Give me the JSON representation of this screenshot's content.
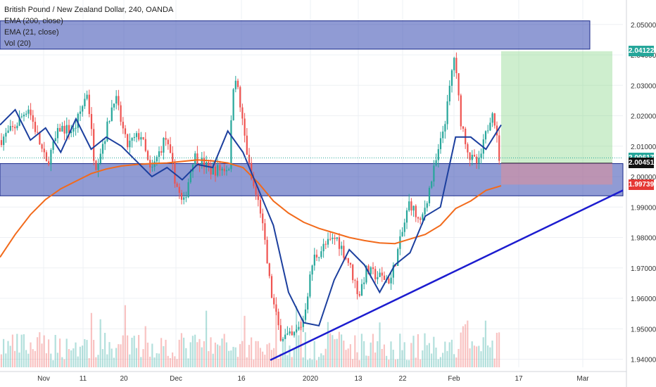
{
  "legend": {
    "symbol": "British Pound / New Zealand Dollar, 240, OANDA",
    "ema200": "EMA (200, close)",
    "ema21": "EMA (21, close)",
    "vol": "Vol (20)"
  },
  "price_tags": [
    {
      "label": "2.04122",
      "color": "#26a69a",
      "value": 2.04122
    },
    {
      "label": "2.00617",
      "color": "#26a69a",
      "value": 2.00617
    },
    {
      "label": "2.00451",
      "color": "#111111",
      "value": 2.00451
    },
    {
      "label": "1.99739",
      "color": "#e53935",
      "value": 1.99739
    }
  ],
  "colors": {
    "up": "#26a69a",
    "down": "#ef5350",
    "ema200": "#f26a1b",
    "ema21": "#1c3f9e",
    "zone": "#3548b0",
    "trendline": "#1c1ccf"
  },
  "chart_data": {
    "type": "candlestick",
    "title": "British Pound / New Zealand Dollar, 240, OANDA",
    "y_ticks": [
      "2.05000",
      "2.04000",
      "2.03000",
      "2.02000",
      "2.01000",
      "2.00000",
      "1.99000",
      "1.98000",
      "1.97000",
      "1.96000",
      "1.95000",
      "1.94000"
    ],
    "ylim": [
      1.9385,
      2.0525
    ],
    "x_ticks": [
      "Nov",
      "11",
      "20",
      "Dec",
      "16",
      "2020",
      "13",
      "22",
      "Feb",
      "17",
      "Mar"
    ],
    "series": [
      {
        "name": "EMA (200, close)",
        "values": [
          1.9735,
          1.981,
          1.9875,
          1.9925,
          1.996,
          1.9985,
          2.001,
          2.0025,
          2.0035,
          2.004,
          2.0043,
          2.0045,
          2.005,
          2.0055,
          2.0052,
          2.0045,
          2.003,
          1.998,
          1.992,
          1.988,
          1.985,
          1.983,
          1.9815,
          1.98,
          1.979,
          1.9782,
          1.978,
          1.9795,
          1.981,
          1.984,
          1.9895,
          1.992,
          1.9955,
          1.997
        ]
      },
      {
        "name": "EMA (21, close)",
        "values": [
          2.017,
          2.022,
          2.012,
          2.016,
          2.008,
          2.019,
          2.009,
          2.013,
          2.01,
          2.005,
          2.0,
          2.003,
          1.999,
          2.004,
          2.003,
          2.015,
          2.008,
          1.996,
          1.984,
          1.962,
          1.952,
          1.951,
          1.966,
          1.976,
          1.971,
          1.962,
          1.971,
          1.975,
          1.987,
          1.99,
          2.013,
          2.013,
          2.009,
          2.017
        ]
      }
    ],
    "zones": [
      {
        "from": 2.0419,
        "to": 2.0512
      },
      {
        "from": 1.9937,
        "to": 2.0043
      }
    ],
    "trendline": [
      {
        "date": "Dec 19",
        "price": 1.9397
      },
      {
        "date": "Mar 5",
        "price": 1.9955
      }
    ],
    "long_position": {
      "entry": 2.0045,
      "target": 2.04122,
      "stop": 1.99739
    }
  }
}
